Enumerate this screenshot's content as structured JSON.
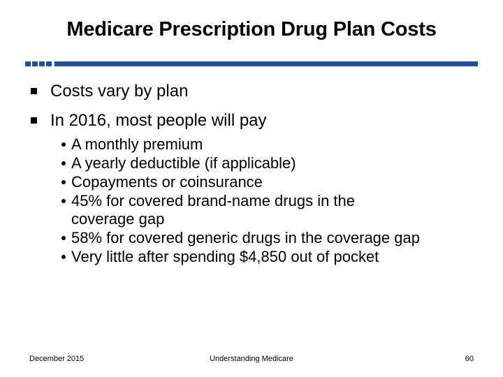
{
  "slide": {
    "title": "Medicare Prescription Drug Plan Costs",
    "accent_color": "#1f4e9c",
    "bullets": [
      {
        "text": "Costs vary by plan"
      },
      {
        "text": "In 2016, most people will pay"
      }
    ],
    "sub_bullets": [
      {
        "text": "A monthly premium"
      },
      {
        "text": "A yearly deductible (if applicable)"
      },
      {
        "text": "Copayments or coinsurance"
      },
      {
        "text": "45% for covered brand-name drugs in the coverage gap"
      },
      {
        "text": "58% for covered generic drugs in the coverage gap"
      },
      {
        "text": "Very little after spending $4,850 out of pocket"
      }
    ]
  },
  "footer": {
    "date": "December 2015",
    "center_label": "Understanding Medicare",
    "page_number": "60"
  }
}
